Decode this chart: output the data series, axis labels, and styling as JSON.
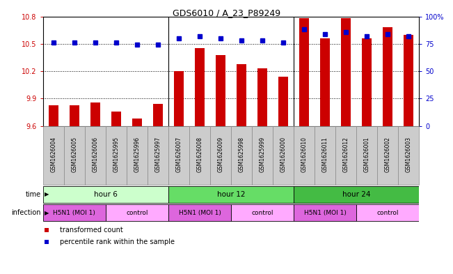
{
  "title": "GDS6010 / A_23_P89249",
  "samples": [
    "GSM1626004",
    "GSM1626005",
    "GSM1626006",
    "GSM1625995",
    "GSM1625996",
    "GSM1625997",
    "GSM1626007",
    "GSM1626008",
    "GSM1626009",
    "GSM1625998",
    "GSM1625999",
    "GSM1626000",
    "GSM1626010",
    "GSM1626011",
    "GSM1626012",
    "GSM1626001",
    "GSM1626002",
    "GSM1626003"
  ],
  "bar_values": [
    9.83,
    9.83,
    9.86,
    9.76,
    9.68,
    9.84,
    10.2,
    10.45,
    10.38,
    10.28,
    10.23,
    10.14,
    10.78,
    10.56,
    10.78,
    10.56,
    10.68,
    10.6
  ],
  "dot_values": [
    76,
    76,
    76,
    76,
    74,
    74,
    80,
    82,
    80,
    78,
    78,
    76,
    88,
    84,
    86,
    82,
    84,
    82
  ],
  "ylim_left": [
    9.6,
    10.8
  ],
  "ylim_right": [
    0,
    100
  ],
  "yticks_left": [
    9.6,
    9.9,
    10.2,
    10.5,
    10.8
  ],
  "yticks_right": [
    0,
    25,
    50,
    75,
    100
  ],
  "ytick_labels_right": [
    "0",
    "25",
    "50",
    "75",
    "100%"
  ],
  "hline_values": [
    10.5,
    10.2,
    9.9
  ],
  "bar_color": "#CC0000",
  "dot_color": "#0000CC",
  "bar_baseline": 9.6,
  "time_groups": [
    {
      "label": "hour 6",
      "start": 0,
      "end": 6,
      "color": "#CCFFCC"
    },
    {
      "label": "hour 12",
      "start": 6,
      "end": 12,
      "color": "#66DD66"
    },
    {
      "label": "hour 24",
      "start": 12,
      "end": 18,
      "color": "#44BB44"
    }
  ],
  "infection_groups": [
    {
      "label": "H5N1 (MOI 1)",
      "start": 0,
      "end": 3,
      "color": "#DD66DD"
    },
    {
      "label": "control",
      "start": 3,
      "end": 6,
      "color": "#FFAAFF"
    },
    {
      "label": "H5N1 (MOI 1)",
      "start": 6,
      "end": 9,
      "color": "#DD66DD"
    },
    {
      "label": "control",
      "start": 9,
      "end": 12,
      "color": "#FFAAFF"
    },
    {
      "label": "H5N1 (MOI 1)",
      "start": 12,
      "end": 15,
      "color": "#DD66DD"
    },
    {
      "label": "control",
      "start": 15,
      "end": 18,
      "color": "#FFAAFF"
    }
  ],
  "legend_items": [
    {
      "label": "transformed count",
      "color": "#CC0000"
    },
    {
      "label": "percentile rank within the sample",
      "color": "#0000CC"
    }
  ],
  "sample_bg_color": "#CCCCCC",
  "axis_color_left": "#CC0000",
  "axis_color_right": "#0000CC",
  "bg_color": "#FFFFFF"
}
